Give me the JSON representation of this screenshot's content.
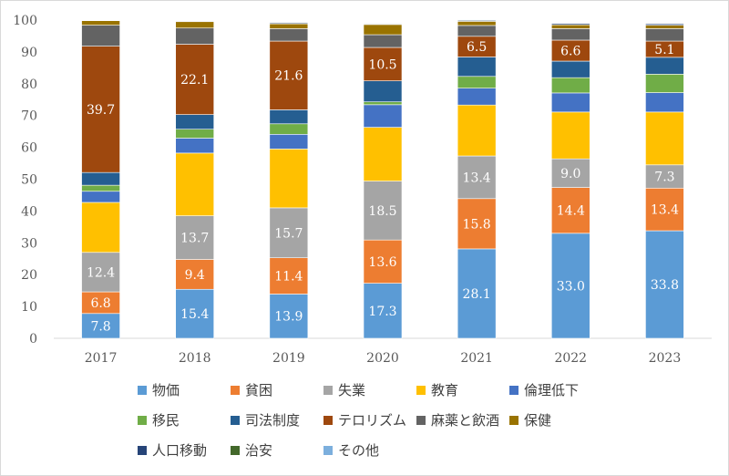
{
  "chart_data": {
    "type": "stacked-bar",
    "categories": [
      "2017",
      "2018",
      "2019",
      "2020",
      "2021",
      "2022",
      "2023"
    ],
    "ylim": [
      0,
      100
    ],
    "yticks": [
      0,
      10,
      20,
      30,
      40,
      50,
      60,
      70,
      80,
      90,
      100
    ],
    "legend_position": "bottom",
    "series": [
      {
        "name": "物価",
        "color": "#5b9bd5",
        "label_color": "#ffffff",
        "values": [
          7.8,
          15.4,
          13.9,
          17.3,
          28.1,
          33.0,
          33.8
        ],
        "labels": [
          "7.8",
          "15.4",
          "13.9",
          "17.3",
          "28.1",
          "33.0",
          "33.8"
        ]
      },
      {
        "name": "貧困",
        "color": "#ed7d31",
        "label_color": "#ffffff",
        "values": [
          6.8,
          9.4,
          11.4,
          13.6,
          15.8,
          14.4,
          13.4
        ],
        "labels": [
          "6.8",
          "9.4",
          "11.4",
          "13.6",
          "15.8",
          "14.4",
          "13.4"
        ]
      },
      {
        "name": "失業",
        "color": "#a5a5a5",
        "label_color": "#ffffff",
        "values": [
          12.4,
          13.7,
          15.7,
          18.5,
          13.4,
          9.0,
          7.3
        ],
        "labels": [
          "12.4",
          "13.7",
          "15.7",
          "18.5",
          "13.4",
          "9.0",
          "7.3"
        ]
      },
      {
        "name": "教育",
        "color": "#ffc000",
        "label_color": "#ffffff",
        "values": [
          15.7,
          19.7,
          18.5,
          16.9,
          16.0,
          14.7,
          16.6
        ],
        "labels": []
      },
      {
        "name": "倫理低下",
        "color": "#4472c4",
        "label_color": "#ffffff",
        "values": [
          3.5,
          4.7,
          4.6,
          7.1,
          5.3,
          6.0,
          6.1
        ],
        "labels": []
      },
      {
        "name": "移民",
        "color": "#70ad47",
        "label_color": "#ffffff",
        "values": [
          1.9,
          2.8,
          3.3,
          0.9,
          3.7,
          4.8,
          5.8
        ],
        "labels": []
      },
      {
        "name": "司法制度",
        "color": "#255e91",
        "label_color": "#ffffff",
        "values": [
          4.0,
          4.6,
          4.4,
          6.6,
          6.1,
          5.2,
          5.3
        ],
        "labels": []
      },
      {
        "name": "テロリズム",
        "color": "#9e480e",
        "label_color": "#ffffff",
        "values": [
          39.7,
          22.1,
          21.6,
          10.5,
          6.5,
          6.6,
          5.1
        ],
        "labels": [
          "39.7",
          "22.1",
          "21.6",
          "10.5",
          "6.5",
          "6.6",
          "5.1"
        ]
      },
      {
        "name": "麻薬と飲酒",
        "color": "#636363",
        "label_color": "#ffffff",
        "values": [
          6.6,
          5.1,
          3.9,
          4.0,
          3.4,
          3.6,
          3.9
        ],
        "labels": []
      },
      {
        "name": "保健",
        "color": "#997300",
        "label_color": "#ffffff",
        "values": [
          1.4,
          2.0,
          1.5,
          3.2,
          1.3,
          1.2,
          1.1
        ],
        "labels": []
      },
      {
        "name": "人口移動",
        "color": "#264478",
        "label_color": "#ffffff",
        "values": [
          0.1,
          0.2,
          0.3,
          0.2,
          0.3,
          0.4,
          0.4
        ],
        "labels": []
      },
      {
        "name": "治安",
        "color": "#43682b",
        "label_color": "#ffffff",
        "values": [
          0.1,
          0.1,
          0.2,
          0.2,
          0.2,
          0.2,
          0.2
        ],
        "labels": []
      },
      {
        "name": "その他",
        "color": "#7cafdd",
        "label_color": "#ffffff",
        "values": [
          0.1,
          0.1,
          0.1,
          0.1,
          0.1,
          0.1,
          0.1
        ],
        "labels": []
      }
    ],
    "legend_rows": [
      [
        "物価",
        "貧困",
        "失業",
        "教育",
        "倫理低下"
      ],
      [
        "移民",
        "司法制度",
        "テロリズム",
        "麻薬と飲酒",
        "保健"
      ],
      [
        "人口移動",
        "治安",
        "その他"
      ]
    ]
  }
}
